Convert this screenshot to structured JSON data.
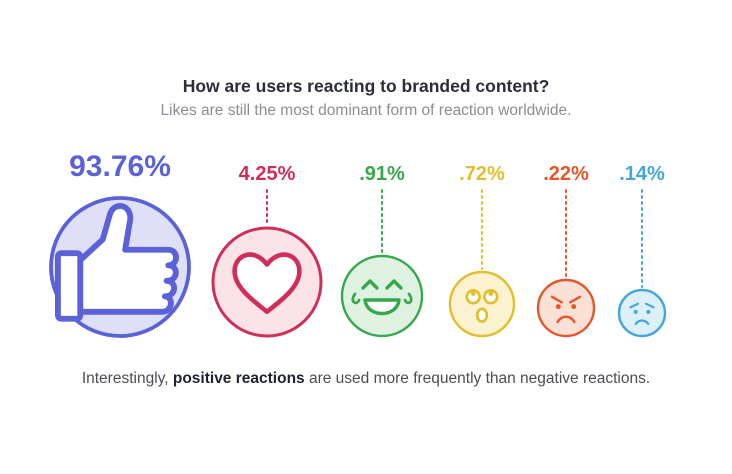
{
  "title": "How are users reacting to branded content?",
  "subtitle": "Likes are still the most dominant form of reaction worldwide.",
  "footnote": {
    "prefix": "Interestingly, ",
    "emphasis": "positive reactions",
    "suffix": " are used more frequently than negative reactions."
  },
  "chart_data": {
    "type": "bubble",
    "title": "How are users reacting to branded content?",
    "subtitle": "Likes are still the most dominant form of reaction worldwide.",
    "series": [
      {
        "name": "Like",
        "icon": "thumbs-up-icon",
        "value": 93.76,
        "label": "93.76%",
        "color": "#5b62d8",
        "fill": "#dfe0f7"
      },
      {
        "name": "Love",
        "icon": "heart-icon",
        "value": 4.25,
        "label": "4.25%",
        "color": "#cf2e59",
        "fill": "#fbe3e7"
      },
      {
        "name": "Haha",
        "icon": "laughing-face-icon",
        "value": 0.91,
        "label": ".91%",
        "color": "#37a84a",
        "fill": "#dff2e2"
      },
      {
        "name": "Wow",
        "icon": "surprised-face-icon",
        "value": 0.72,
        "label": ".72%",
        "color": "#e2bf2e",
        "fill": "#fbf3cf"
      },
      {
        "name": "Angry",
        "icon": "angry-face-icon",
        "value": 0.22,
        "label": ".22%",
        "color": "#e5562b",
        "fill": "#fbe0d6"
      },
      {
        "name": "Sad",
        "icon": "sad-face-icon",
        "value": 0.14,
        "label": ".14%",
        "color": "#47a6d9",
        "fill": "#dcf0fa"
      }
    ]
  }
}
